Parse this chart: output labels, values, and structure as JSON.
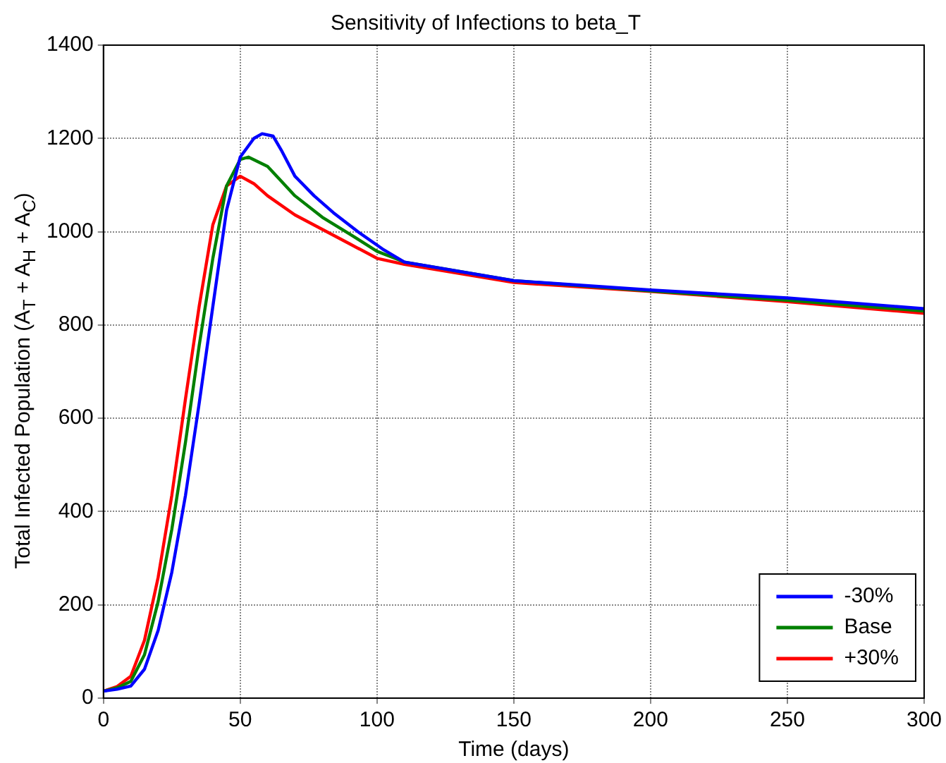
{
  "chart_data": {
    "type": "line",
    "title": "Sensitivity of Infections to beta_T",
    "xlabel": "Time (days)",
    "ylabel": "Total Infected Population (A$_{T}$ + A$_{H}$ + A$_{C}$)",
    "xlim": [
      0,
      300
    ],
    "xticks": [
      0,
      50,
      100,
      150,
      200,
      250,
      300
    ],
    "ylim": [
      0,
      1400
    ],
    "yticks": [
      0,
      200,
      400,
      600,
      800,
      1000,
      1200,
      1400
    ],
    "grid": true,
    "legend": "bottom right",
    "marker": "none",
    "line_style": "solid",
    "series": [
      {
        "name": "-30%",
        "color": "#0000ff",
        "x": [
          0,
          5,
          10,
          15,
          20,
          25,
          30,
          35,
          40,
          45,
          50,
          55,
          58,
          62,
          65,
          70,
          77,
          84,
          93,
          102,
          110,
          150,
          200,
          250,
          300
        ],
        "values": [
          15,
          19,
          26,
          62,
          145,
          270,
          435,
          632,
          840,
          1046,
          1160,
          1200,
          1210,
          1205,
          1175,
          1119,
          1077,
          1041,
          1000,
          963,
          935,
          895,
          875,
          858,
          835
        ]
      },
      {
        "name": "Base",
        "color": "#008000",
        "x": [
          0,
          5,
          10,
          15,
          20,
          25,
          30,
          35,
          40,
          45,
          50,
          53,
          60,
          70,
          80,
          90,
          100,
          110,
          150,
          200,
          250,
          300
        ],
        "values": [
          15,
          22,
          36,
          93,
          207,
          362,
          549,
          756,
          943,
          1098,
          1155,
          1160,
          1140,
          1077,
          1031,
          995,
          958,
          935,
          895,
          873,
          853,
          830
        ]
      },
      {
        "name": "+30%",
        "color": "#ff0000",
        "x": [
          0,
          5,
          10,
          15,
          20,
          25,
          30,
          35,
          40,
          45,
          50,
          55,
          60,
          70,
          80,
          90,
          100,
          110,
          150,
          200,
          250,
          300
        ],
        "values": [
          15,
          25,
          47,
          124,
          259,
          435,
          642,
          840,
          1015,
          1098,
          1119,
          1103,
          1077,
          1036,
          1005,
          974,
          943,
          930,
          891,
          872,
          850,
          825
        ]
      }
    ]
  }
}
